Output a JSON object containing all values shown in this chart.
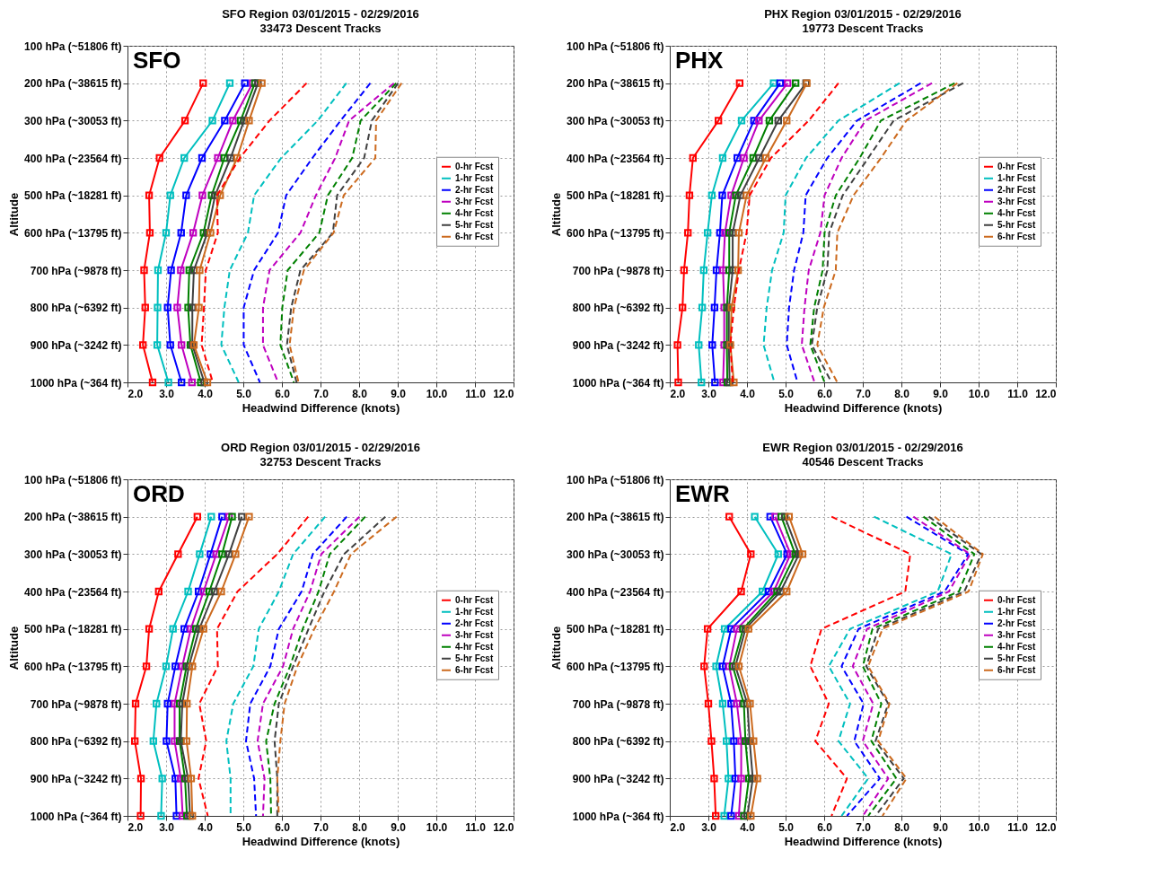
{
  "chart_data": [
    {
      "type": "line",
      "title": "SFO Region 03/01/2015 - 02/29/2016",
      "subtitle": "33473 Descent Tracks",
      "annotations": [
        "SFO"
      ],
      "xlabel": "Headwind Difference (knots)",
      "ylabel": "Altitude",
      "orientation": "horizontal",
      "grid": true,
      "legend": "right",
      "marker": "square",
      "line_style": "solid",
      "categories": [
        "100 hPa (~51806 ft)",
        "200 hPa (~38615 ft)",
        "300 hPa (~30053 ft)",
        "400 hPa (~23564 ft)",
        "500 hPa (~18281 ft)",
        "600 hPa (~13795 ft)",
        "700 hPa (~9878 ft)",
        "800 hPa (~6392 ft)",
        "900 hPa (~3242 ft)",
        "1000 hPa (~364 ft)"
      ],
      "xlim": [
        2,
        12
      ],
      "xticks": [
        {
          "value": 2,
          "label": "2.0"
        },
        {
          "value": 3,
          "label": "3.0"
        },
        {
          "value": 4,
          "label": "4.0"
        },
        {
          "value": 5,
          "label": "5.0"
        },
        {
          "value": 6,
          "label": "6.0"
        },
        {
          "value": 7,
          "label": "7.0"
        },
        {
          "value": 8,
          "label": "8.0"
        },
        {
          "value": 9,
          "label": "9.0"
        },
        {
          "value": 10,
          "label": "10.0"
        },
        {
          "value": 11,
          "label": "11.0"
        },
        {
          "value": 12,
          "label": "12.0"
        }
      ],
      "series": [
        {
          "name": "0-hr Fcst",
          "color": "#ff0000",
          "values": [
            null,
            3.96,
            3.49,
            2.83,
            2.56,
            2.58,
            2.43,
            2.46,
            2.4,
            2.65
          ]
        },
        {
          "name": "1-hr Fcst",
          "color": "#00bfbf",
          "values": [
            null,
            4.65,
            4.2,
            3.47,
            3.11,
            3.0,
            2.79,
            2.78,
            2.77,
            3.06
          ]
        },
        {
          "name": "2-hr Fcst",
          "color": "#0000ff",
          "values": [
            null,
            5.04,
            4.52,
            3.93,
            3.52,
            3.39,
            3.13,
            3.04,
            3.11,
            3.4
          ]
        },
        {
          "name": "3-hr Fcst",
          "color": "#bf00bf",
          "values": [
            null,
            5.24,
            4.73,
            4.34,
            3.94,
            3.7,
            3.38,
            3.29,
            3.4,
            3.67
          ]
        },
        {
          "name": "4-hr Fcst",
          "color": "#008000",
          "values": [
            null,
            5.3,
            4.93,
            4.51,
            4.18,
            3.97,
            3.6,
            3.57,
            3.63,
            3.9
          ]
        },
        {
          "name": "5-hr Fcst",
          "color": "#404040",
          "values": [
            null,
            5.38,
            5.02,
            4.67,
            4.27,
            4.07,
            3.72,
            3.68,
            3.68,
            3.99
          ]
        },
        {
          "name": "6-hr Fcst",
          "color": "#cc6a1e",
          "values": [
            null,
            5.48,
            5.15,
            4.84,
            4.4,
            4.15,
            3.87,
            3.85,
            3.72,
            4.07
          ]
        },
        {
          "color": "#ff0000",
          "line_style": "dashed",
          "marker": "none",
          "values": [
            null,
            6.64,
            5.68,
            4.91,
            4.32,
            4.34,
            4.03,
            3.98,
            3.92,
            4.21
          ]
        },
        {
          "color": "#00bfbf",
          "line_style": "dashed",
          "marker": "none",
          "values": [
            null,
            7.67,
            6.93,
            5.98,
            5.28,
            5.12,
            4.65,
            4.51,
            4.43,
            4.88
          ]
        },
        {
          "color": "#0000ff",
          "line_style": "dashed",
          "marker": "none",
          "values": [
            null,
            8.29,
            7.52,
            6.79,
            6.11,
            5.9,
            5.28,
            5.01,
            5.01,
            5.43
          ]
        },
        {
          "color": "#bf00bf",
          "line_style": "dashed",
          "marker": "none",
          "values": [
            null,
            8.9,
            7.74,
            7.38,
            6.88,
            6.48,
            5.68,
            5.51,
            5.51,
            5.9
          ]
        },
        {
          "color": "#008000",
          "line_style": "dashed",
          "marker": "none",
          "values": [
            null,
            8.96,
            8.04,
            7.82,
            7.19,
            6.97,
            6.15,
            6.01,
            5.96,
            6.31
          ]
        },
        {
          "color": "#404040",
          "line_style": "dashed",
          "marker": "none",
          "values": [
            null,
            9.01,
            8.33,
            8.13,
            7.43,
            7.32,
            6.48,
            6.24,
            6.13,
            6.38
          ]
        },
        {
          "color": "#cc6a1e",
          "line_style": "dashed",
          "marker": "none",
          "values": [
            null,
            9.1,
            8.44,
            8.42,
            7.6,
            7.34,
            6.57,
            6.31,
            6.2,
            6.43
          ]
        }
      ]
    },
    {
      "type": "line",
      "title": "PHX Region 03/01/2015 - 02/29/2016",
      "subtitle": "19773 Descent Tracks",
      "annotations": [
        "PHX"
      ],
      "xlabel": "Headwind Difference (knots)",
      "ylabel": "Altitude",
      "orientation": "horizontal",
      "grid": true,
      "legend": "right",
      "marker": "square",
      "line_style": "solid",
      "categories": [
        "100 hPa (~51806 ft)",
        "200 hPa (~38615 ft)",
        "300 hPa (~30053 ft)",
        "400 hPa (~23564 ft)",
        "500 hPa (~18281 ft)",
        "600 hPa (~13795 ft)",
        "700 hPa (~9878 ft)",
        "800 hPa (~6392 ft)",
        "900 hPa (~3242 ft)",
        "1000 hPa (~364 ft)"
      ],
      "xlim": [
        2,
        12
      ],
      "xticks": [
        {
          "value": 2,
          "label": "2.0"
        },
        {
          "value": 3,
          "label": "3.0"
        },
        {
          "value": 4,
          "label": "4.0"
        },
        {
          "value": 5,
          "label": "5.0"
        },
        {
          "value": 6,
          "label": "6.0"
        },
        {
          "value": 7,
          "label": "7.0"
        },
        {
          "value": 8,
          "label": "8.0"
        },
        {
          "value": 9,
          "label": "9.0"
        },
        {
          "value": 10,
          "label": "10.0"
        },
        {
          "value": 11,
          "label": "11.0"
        },
        {
          "value": 12,
          "label": "12.0"
        }
      ],
      "series": [
        {
          "name": "0-hr Fcst",
          "color": "#ff0000",
          "values": [
            null,
            3.81,
            3.26,
            2.6,
            2.51,
            2.47,
            2.37,
            2.33,
            2.2,
            2.22
          ]
        },
        {
          "name": "1-hr Fcst",
          "color": "#00bfbf",
          "values": [
            null,
            4.69,
            3.86,
            3.37,
            3.09,
            2.98,
            2.88,
            2.84,
            2.75,
            2.82
          ]
        },
        {
          "name": "2-hr Fcst",
          "color": "#0000ff",
          "values": [
            null,
            4.86,
            4.18,
            3.75,
            3.36,
            3.3,
            3.21,
            3.16,
            3.1,
            3.17
          ]
        },
        {
          "name": "3-hr Fcst",
          "color": "#bf00bf",
          "values": [
            null,
            5.05,
            4.31,
            3.92,
            3.59,
            3.43,
            3.38,
            3.41,
            3.41,
            3.38
          ]
        },
        {
          "name": "4-hr Fcst",
          "color": "#008000",
          "values": [
            null,
            5.26,
            4.58,
            4.16,
            3.71,
            3.54,
            3.54,
            3.48,
            3.48,
            3.49
          ]
        },
        {
          "name": "5-hr Fcst",
          "color": "#404040",
          "values": [
            null,
            5.53,
            4.81,
            4.32,
            3.83,
            3.63,
            3.63,
            3.53,
            3.53,
            3.55
          ]
        },
        {
          "name": "6-hr Fcst",
          "color": "#cc6a1e",
          "values": [
            null,
            5.55,
            5.03,
            4.49,
            3.99,
            3.79,
            3.77,
            3.6,
            3.57,
            3.66
          ]
        },
        {
          "color": "#ff0000",
          "line_style": "dashed",
          "marker": "none",
          "values": [
            null,
            6.37,
            5.6,
            4.62,
            4.07,
            3.99,
            3.79,
            3.66,
            3.57,
            3.63
          ]
        },
        {
          "color": "#00bfbf",
          "line_style": "dashed",
          "marker": "none",
          "values": [
            null,
            7.95,
            6.37,
            5.53,
            5.0,
            4.95,
            4.65,
            4.51,
            4.43,
            4.71
          ]
        },
        {
          "color": "#0000ff",
          "line_style": "dashed",
          "marker": "none",
          "values": [
            null,
            8.5,
            6.85,
            6.08,
            5.52,
            5.46,
            5.22,
            5.09,
            5.03,
            5.31
          ]
        },
        {
          "color": "#bf00bf",
          "line_style": "dashed",
          "marker": "none",
          "values": [
            null,
            8.79,
            7.07,
            6.45,
            6.01,
            5.9,
            5.6,
            5.49,
            5.42,
            5.75
          ]
        },
        {
          "color": "#008000",
          "line_style": "dashed",
          "marker": "none",
          "values": [
            null,
            9.38,
            7.47,
            6.92,
            6.3,
            6.01,
            5.96,
            5.74,
            5.64,
            6.01
          ]
        },
        {
          "color": "#404040",
          "line_style": "dashed",
          "marker": "none",
          "values": [
            null,
            9.6,
            7.8,
            7.14,
            6.48,
            6.13,
            6.08,
            5.82,
            5.68,
            6.19
          ]
        },
        {
          "color": "#cc6a1e",
          "line_style": "dashed",
          "marker": "none",
          "values": [
            null,
            9.45,
            8.13,
            7.47,
            6.76,
            6.34,
            6.3,
            5.99,
            5.82,
            6.34
          ]
        }
      ]
    },
    {
      "type": "line",
      "title": "ORD Region 03/01/2015 - 02/29/2016",
      "subtitle": "32753 Descent Tracks",
      "annotations": [
        "ORD"
      ],
      "xlabel": "Headwind Difference (knots)",
      "ylabel": "Altitude",
      "orientation": "horizontal",
      "grid": true,
      "legend": "right",
      "marker": "square",
      "line_style": "solid",
      "categories": [
        "100 hPa (~51806 ft)",
        "200 hPa (~38615 ft)",
        "300 hPa (~30053 ft)",
        "400 hPa (~23564 ft)",
        "500 hPa (~18281 ft)",
        "600 hPa (~13795 ft)",
        "700 hPa (~9878 ft)",
        "800 hPa (~6392 ft)",
        "900 hPa (~3242 ft)",
        "1000 hPa (~364 ft)"
      ],
      "xlim": [
        2,
        12
      ],
      "xticks": [
        {
          "value": 2,
          "label": "2.0"
        },
        {
          "value": 3,
          "label": "3.0"
        },
        {
          "value": 4,
          "label": "4.0"
        },
        {
          "value": 5,
          "label": "5.0"
        },
        {
          "value": 6,
          "label": "6.0"
        },
        {
          "value": 7,
          "label": "7.0"
        },
        {
          "value": 8,
          "label": "8.0"
        },
        {
          "value": 9,
          "label": "9.0"
        },
        {
          "value": 10,
          "label": "10.0"
        },
        {
          "value": 11,
          "label": "11.0"
        },
        {
          "value": 12,
          "label": "12.0"
        }
      ],
      "series": [
        {
          "name": "0-hr Fcst",
          "color": "#ff0000",
          "values": [
            null,
            3.81,
            3.31,
            2.81,
            2.56,
            2.49,
            2.21,
            2.19,
            2.35,
            2.34
          ]
        },
        {
          "name": "1-hr Fcst",
          "color": "#00bfbf",
          "values": [
            null,
            4.17,
            3.87,
            3.57,
            3.18,
            3.0,
            2.75,
            2.67,
            2.9,
            2.87
          ]
        },
        {
          "name": "2-hr Fcst",
          "color": "#0000ff",
          "values": [
            null,
            4.45,
            4.15,
            3.84,
            3.47,
            3.24,
            3.04,
            3.01,
            3.24,
            3.27
          ]
        },
        {
          "name": "3-hr Fcst",
          "color": "#bf00bf",
          "values": [
            null,
            4.63,
            4.3,
            3.97,
            3.64,
            3.42,
            3.22,
            3.22,
            3.38,
            3.43
          ]
        },
        {
          "name": "4-hr Fcst",
          "color": "#008000",
          "values": [
            null,
            4.71,
            4.45,
            4.12,
            3.77,
            3.53,
            3.35,
            3.35,
            3.49,
            3.54
          ]
        },
        {
          "name": "5-hr Fcst",
          "color": "#404040",
          "values": [
            null,
            4.96,
            4.63,
            4.25,
            3.86,
            3.59,
            3.42,
            3.38,
            3.57,
            3.62
          ]
        },
        {
          "name": "6-hr Fcst",
          "color": "#cc6a1e",
          "values": [
            null,
            5.15,
            4.8,
            4.43,
            3.97,
            3.68,
            3.54,
            3.53,
            3.65,
            3.68
          ]
        },
        {
          "color": "#ff0000",
          "line_style": "dashed",
          "marker": "none",
          "values": [
            null,
            6.68,
            5.88,
            4.85,
            4.32,
            4.34,
            3.86,
            4.04,
            3.84,
            4.08
          ]
        },
        {
          "color": "#00bfbf",
          "line_style": "dashed",
          "marker": "none",
          "values": [
            null,
            7.12,
            6.29,
            5.92,
            5.4,
            5.26,
            4.74,
            4.56,
            4.67,
            4.67
          ]
        },
        {
          "color": "#0000ff",
          "line_style": "dashed",
          "marker": "none",
          "values": [
            null,
            7.68,
            6.8,
            6.51,
            5.92,
            5.7,
            5.18,
            5.07,
            5.28,
            5.33
          ]
        },
        {
          "color": "#bf00bf",
          "line_style": "dashed",
          "marker": "none",
          "values": [
            null,
            8.01,
            7.02,
            6.73,
            6.29,
            6.03,
            5.51,
            5.37,
            5.55,
            5.51
          ]
        },
        {
          "color": "#008000",
          "line_style": "dashed",
          "marker": "none",
          "values": [
            null,
            8.16,
            7.24,
            6.95,
            6.54,
            6.21,
            5.81,
            5.59,
            5.7,
            5.72
          ]
        },
        {
          "color": "#404040",
          "line_style": "dashed",
          "marker": "none",
          "values": [
            null,
            8.68,
            7.61,
            7.1,
            6.69,
            6.29,
            5.92,
            5.81,
            5.88,
            5.88
          ]
        },
        {
          "color": "#cc6a1e",
          "line_style": "dashed",
          "marker": "none",
          "values": [
            null,
            8.97,
            7.79,
            7.35,
            6.84,
            6.4,
            6.07,
            5.96,
            5.88,
            5.92
          ]
        }
      ]
    },
    {
      "type": "line",
      "title": "EWR Region 03/01/2015 - 02/29/2016",
      "subtitle": "40546 Descent Tracks",
      "annotations": [
        "EWR"
      ],
      "xlabel": "Headwind Difference (knots)",
      "ylabel": "Altitude",
      "orientation": "horizontal",
      "grid": true,
      "legend": "right",
      "marker": "square",
      "line_style": "solid",
      "categories": [
        "100 hPa (~51806 ft)",
        "200 hPa (~38615 ft)",
        "300 hPa (~30053 ft)",
        "400 hPa (~23564 ft)",
        "500 hPa (~18281 ft)",
        "600 hPa (~13795 ft)",
        "700 hPa (~9878 ft)",
        "800 hPa (~6392 ft)",
        "900 hPa (~3242 ft)",
        "1000 hPa (~364 ft)"
      ],
      "xlim": [
        2,
        12
      ],
      "xticks": [
        {
          "value": 2,
          "label": "2.0"
        },
        {
          "value": 3,
          "label": "3.0"
        },
        {
          "value": 4,
          "label": "4.0"
        },
        {
          "value": 5,
          "label": "5.0"
        },
        {
          "value": 6,
          "label": "6.0"
        },
        {
          "value": 7,
          "label": "7.0"
        },
        {
          "value": 8,
          "label": "8.0"
        },
        {
          "value": 9,
          "label": "9.0"
        },
        {
          "value": 10,
          "label": "10.0"
        },
        {
          "value": 11,
          "label": "11.0"
        },
        {
          "value": 12,
          "label": "12.0"
        }
      ],
      "series": [
        {
          "name": "0-hr Fcst",
          "color": "#ff0000",
          "values": [
            null,
            3.54,
            4.1,
            3.85,
            2.98,
            2.89,
            3.0,
            3.08,
            3.15,
            3.19
          ]
        },
        {
          "name": "1-hr Fcst",
          "color": "#00bfbf",
          "values": [
            null,
            4.2,
            4.81,
            4.4,
            3.42,
            3.2,
            3.37,
            3.47,
            3.52,
            3.41
          ]
        },
        {
          "name": "2-hr Fcst",
          "color": "#0000ff",
          "values": [
            null,
            4.6,
            5.04,
            4.56,
            3.59,
            3.37,
            3.59,
            3.66,
            3.7,
            3.59
          ]
        },
        {
          "name": "3-hr Fcst",
          "color": "#bf00bf",
          "values": [
            null,
            4.73,
            5.13,
            4.69,
            3.74,
            3.54,
            3.74,
            3.85,
            3.85,
            3.79
          ]
        },
        {
          "name": "4-hr Fcst",
          "color": "#008000",
          "values": [
            null,
            4.89,
            5.25,
            4.78,
            3.9,
            3.63,
            3.92,
            3.96,
            4.05,
            3.92
          ]
        },
        {
          "name": "5-hr Fcst",
          "color": "#404040",
          "values": [
            null,
            4.98,
            5.35,
            4.87,
            3.96,
            3.7,
            4.01,
            4.07,
            4.15,
            4.01
          ]
        },
        {
          "name": "6-hr Fcst",
          "color": "#cc6a1e",
          "values": [
            null,
            5.09,
            5.44,
            5.03,
            4.04,
            3.79,
            4.08,
            4.17,
            4.27,
            4.1
          ]
        },
        {
          "color": "#ff0000",
          "line_style": "dashed",
          "marker": "none",
          "values": [
            null,
            6.19,
            8.23,
            8.1,
            5.93,
            5.64,
            6.12,
            5.77,
            6.59,
            6.19
          ]
        },
        {
          "color": "#00bfbf",
          "line_style": "dashed",
          "marker": "none",
          "values": [
            null,
            7.29,
            9.3,
            8.94,
            6.67,
            6.12,
            6.67,
            6.37,
            7.14,
            6.45
          ]
        },
        {
          "color": "#0000ff",
          "line_style": "dashed",
          "marker": "none",
          "values": [
            null,
            8.13,
            9.73,
            9.12,
            6.89,
            6.45,
            7.02,
            6.78,
            7.44,
            6.59
          ]
        },
        {
          "color": "#bf00bf",
          "line_style": "dashed",
          "marker": "none",
          "values": [
            null,
            8.31,
            9.78,
            9.23,
            7.11,
            6.74,
            7.27,
            7.0,
            7.66,
            7.0
          ]
        },
        {
          "color": "#008000",
          "line_style": "dashed",
          "marker": "none",
          "values": [
            null,
            8.57,
            9.89,
            9.49,
            7.25,
            7.0,
            7.48,
            7.22,
            7.87,
            7.14
          ]
        },
        {
          "color": "#404040",
          "line_style": "dashed",
          "marker": "none",
          "values": [
            null,
            8.71,
            10.07,
            9.63,
            7.4,
            7.09,
            7.66,
            7.33,
            8.06,
            7.33
          ]
        },
        {
          "color": "#cc6a1e",
          "line_style": "dashed",
          "marker": "none",
          "values": [
            null,
            8.86,
            10.11,
            9.74,
            7.51,
            7.14,
            7.69,
            7.4,
            8.13,
            7.51
          ]
        }
      ]
    }
  ]
}
